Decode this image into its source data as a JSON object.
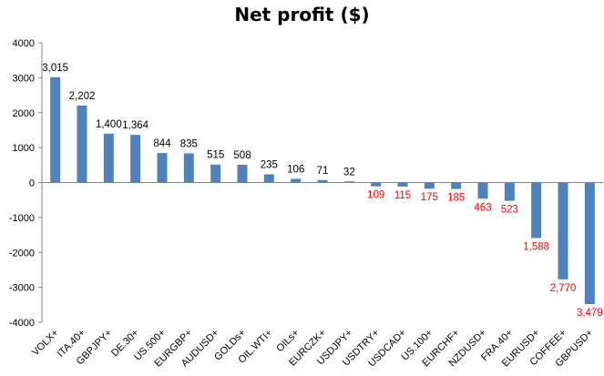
{
  "chart_data": {
    "type": "bar",
    "title": "Net profit ($)",
    "xlabel": "",
    "ylabel": "",
    "ylim": [
      -4000,
      4000
    ],
    "yticks": [
      4000,
      3000,
      2000,
      1000,
      0,
      -1000,
      -2000,
      -3000,
      -4000
    ],
    "ytick_labels": [
      "4000",
      "3000",
      "2000",
      "1000",
      "0",
      "-1000",
      "-2000",
      "-3000",
      "-4000"
    ],
    "grid": false,
    "legend": "none",
    "categories": [
      "VOLX+",
      "ITA.40+",
      "GBPJPY+",
      "DE.30+",
      "US.500+",
      "EURGBP+",
      "AUDUSD+",
      "GOLDs+",
      "OIL.WTI+",
      "OILs+",
      "EURCZK+",
      "USDJPY+",
      "USDTRY+",
      "USDCAD+",
      "US.100+",
      "EURCHF+",
      "NZDUSD+",
      "FRA.40+",
      "EURUSD+",
      "COFFEE+",
      "GBPUSD+"
    ],
    "values": [
      3015,
      2202,
      1400,
      1364,
      844,
      835,
      515,
      508,
      235,
      106,
      71,
      32,
      -109,
      -115,
      -175,
      -185,
      -463,
      -523,
      -1588,
      -2770,
      -3479
    ],
    "data_labels": [
      "3,015",
      "2,202",
      "1,400",
      "1,364",
      "844",
      "835",
      "515",
      "508",
      "235",
      "106",
      "71",
      "32",
      "109",
      "115",
      "175",
      "185",
      "463",
      "523",
      "1,588",
      "2,770",
      "3,479"
    ],
    "bar_color": "#4f81bd",
    "positive_label_color": "#000000",
    "negative_label_color": "#ff0000"
  }
}
